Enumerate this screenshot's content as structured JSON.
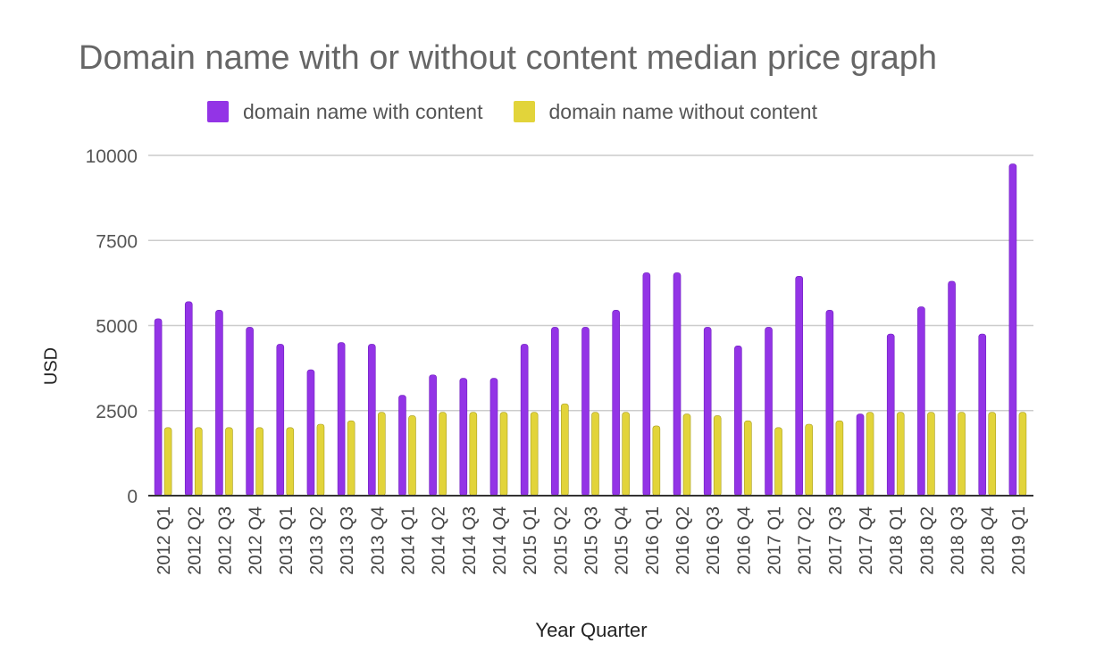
{
  "chart_data": {
    "type": "bar",
    "title": "Domain name with or without content median price graph",
    "xlabel": "Year Quarter",
    "ylabel": "USD",
    "ylim": [
      0,
      10000
    ],
    "yticks": [
      "0",
      "2500",
      "5000",
      "7500",
      "10000"
    ],
    "grid": true,
    "legend_position": "top",
    "categories": [
      "2012 Q1",
      "2012 Q2",
      "2012 Q3",
      "2012 Q4",
      "2013 Q1",
      "2013 Q2",
      "2013 Q3",
      "2013 Q4",
      "2014 Q1",
      "2014 Q2",
      "2014 Q3",
      "2014 Q4",
      "2015 Q1",
      "2015 Q2",
      "2015 Q3",
      "2015 Q4",
      "2016 Q1",
      "2016 Q2",
      "2016 Q3",
      "2016 Q4",
      "2017 Q1",
      "2017 Q2",
      "2017 Q3",
      "2017 Q4",
      "2018 Q1",
      "2018 Q2",
      "2018 Q3",
      "2018 Q4",
      "2019 Q1"
    ],
    "series": [
      {
        "name": "domain name with content",
        "color": "#9334E6",
        "values": [
          5200,
          5700,
          5450,
          4950,
          4450,
          3700,
          4500,
          4450,
          2950,
          3550,
          3450,
          3450,
          4450,
          4950,
          4950,
          5450,
          6550,
          6550,
          4950,
          4400,
          4950,
          6450,
          5450,
          2400,
          4750,
          5550,
          6300,
          4750,
          9750
        ]
      },
      {
        "name": "domain name without content",
        "color": "#E2D43A",
        "values": [
          2000,
          2000,
          2000,
          2000,
          2000,
          2100,
          2200,
          2450,
          2350,
          2450,
          2450,
          2450,
          2450,
          2700,
          2450,
          2450,
          2050,
          2400,
          2350,
          2200,
          2000,
          2100,
          2200,
          2450,
          2450,
          2450,
          2450,
          2450,
          2450
        ]
      }
    ]
  }
}
